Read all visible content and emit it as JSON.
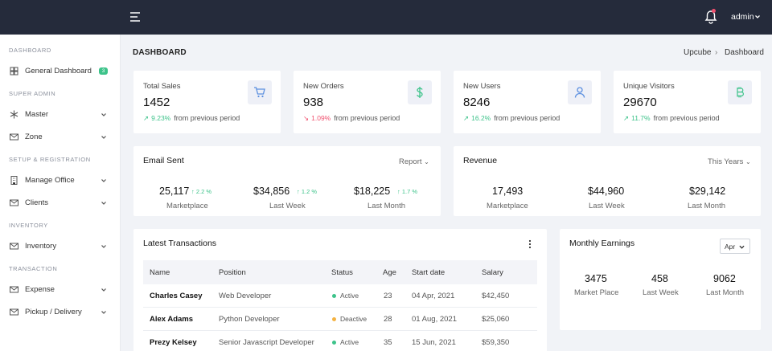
{
  "topbar": {
    "user": "admin"
  },
  "sidebar": {
    "sections": [
      "DASHBOARD",
      "SUPER ADMIN",
      "SETUP & REGISTRATION",
      "INVENTORY",
      "TRANSACTION"
    ],
    "items": [
      {
        "label": "General Dashboard",
        "badge": "3"
      },
      {
        "label": "Master"
      },
      {
        "label": "Zone"
      },
      {
        "label": "Manage Office"
      },
      {
        "label": "Clients"
      },
      {
        "label": "Inventory"
      },
      {
        "label": "Expense"
      },
      {
        "label": "Pickup / Delivery"
      }
    ]
  },
  "page": {
    "title": "DASHBOARD",
    "breadcrumb": [
      "Upcube",
      "Dashboard"
    ],
    "sep": "›"
  },
  "stats": [
    {
      "title": "Total Sales",
      "value": "1452",
      "change": "9.23%",
      "note": "from previous period",
      "trend": "up",
      "icon": "cart-icon"
    },
    {
      "title": "New Orders",
      "value": "938",
      "change": "1.09%",
      "note": "from previous period",
      "trend": "down",
      "icon": "dollar-icon"
    },
    {
      "title": "New Users",
      "value": "8246",
      "change": "16.2%",
      "note": "from previous period",
      "trend": "up",
      "icon": "user-icon"
    },
    {
      "title": "Unique Visitors",
      "value": "29670",
      "change": "11.7%",
      "note": "from previous period",
      "trend": "up",
      "icon": "bitcoin-icon"
    }
  ],
  "email": {
    "title": "Email Sent",
    "dropdown": "Report",
    "metrics": [
      {
        "value": "25,117",
        "change": "2.2 %",
        "label": "Marketplace"
      },
      {
        "value": "$34,856",
        "change": "1.2 %",
        "label": "Last Week"
      },
      {
        "value": "$18,225",
        "change": "1.7 %",
        "label": "Last Month"
      }
    ]
  },
  "revenue": {
    "title": "Revenue",
    "dropdown": "This Years",
    "metrics": [
      {
        "value": "17,493",
        "label": "Marketplace"
      },
      {
        "value": "$44,960",
        "label": "Last Week"
      },
      {
        "value": "$29,142",
        "label": "Last Month"
      }
    ]
  },
  "transactions": {
    "title": "Latest Transactions",
    "columns": [
      "Name",
      "Position",
      "Status",
      "Age",
      "Start date",
      "Salary"
    ],
    "rows": [
      {
        "name": "Charles Casey",
        "position": "Web Developer",
        "status": "Active",
        "age": "23",
        "start": "04 Apr, 2021",
        "salary": "$42,450"
      },
      {
        "name": "Alex Adams",
        "position": "Python Developer",
        "status": "Deactive",
        "age": "28",
        "start": "01 Aug, 2021",
        "salary": "$25,060"
      },
      {
        "name": "Prezy Kelsey",
        "position": "Senior Javascript Developer",
        "status": "Active",
        "age": "35",
        "start": "15 Jun, 2021",
        "salary": "$59,350"
      }
    ]
  },
  "earnings": {
    "title": "Monthly Earnings",
    "month": "Apr",
    "metrics": [
      {
        "value": "3475",
        "label": "Market Place"
      },
      {
        "value": "458",
        "label": "Last Week"
      },
      {
        "value": "9062",
        "label": "Last Month"
      }
    ]
  },
  "colors": {
    "topbar": "#252b3b",
    "success": "#3dc38a",
    "danger": "#f0506e",
    "warning": "#f4b241",
    "icon": "#5b8fe0"
  }
}
